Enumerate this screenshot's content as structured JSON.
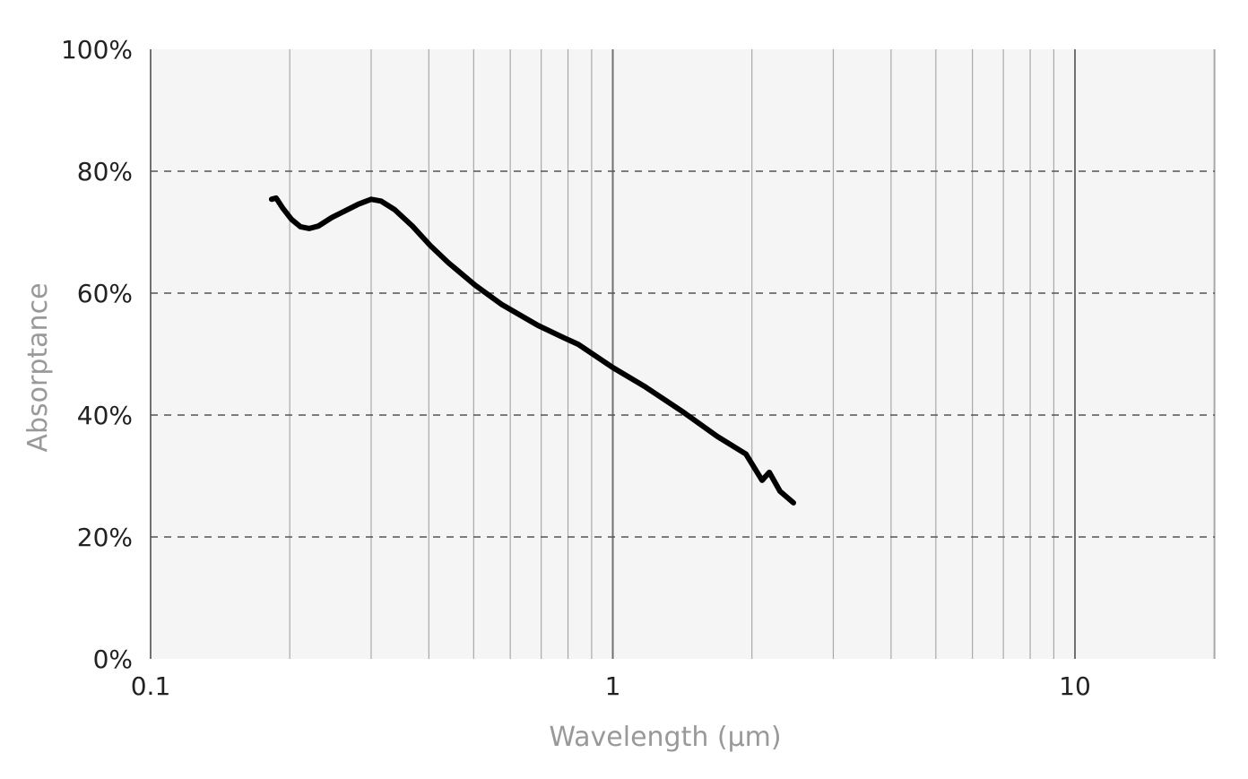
{
  "chart_data": {
    "type": "line",
    "title": "",
    "xlabel": "Wavelength (µm)",
    "ylabel": "Absorptance",
    "xscale": "log",
    "xlim": [
      0.1,
      20
    ],
    "ylim": [
      0,
      100
    ],
    "x_ticks": [
      {
        "value": 0.1,
        "label": "0.1"
      },
      {
        "value": 1,
        "label": "1"
      },
      {
        "value": 10,
        "label": "10"
      }
    ],
    "y_ticks": [
      {
        "value": 0,
        "label": "0%"
      },
      {
        "value": 20,
        "label": "20%"
      },
      {
        "value": 40,
        "label": "40%"
      },
      {
        "value": 60,
        "label": "60%"
      },
      {
        "value": 80,
        "label": "80%"
      },
      {
        "value": 100,
        "label": "100%"
      }
    ],
    "grid": {
      "x": "minor+major solid",
      "y": "dashed"
    },
    "colors": {
      "plot_background": "#f5f5f5",
      "line": "#000000",
      "minor_grid": "#a8a8a8",
      "major_grid": "#707070",
      "y_grid": "#555555",
      "axis_title": "#999999",
      "tick_label": "#222222"
    },
    "series": [
      {
        "x": [
          0.1827,
          0.1869,
          0.1929,
          0.2017,
          0.2109,
          0.2205,
          0.2306,
          0.2465,
          0.2636,
          0.2818,
          0.3001,
          0.3152,
          0.3372,
          0.3685,
          0.403,
          0.4406,
          0.5037,
          0.5759,
          0.6887,
          0.7875,
          0.842,
          1.0,
          1.177,
          1.407,
          1.683,
          1.941,
          2.104,
          2.181,
          2.3,
          2.46
        ],
        "y": [
          75.4,
          75.6,
          74.0,
          72.1,
          70.9,
          70.6,
          71.0,
          72.4,
          73.5,
          74.6,
          75.4,
          75.1,
          73.7,
          71.0,
          67.8,
          65.0,
          61.3,
          58.1,
          54.7,
          52.6,
          51.6,
          47.8,
          44.6,
          40.7,
          36.5,
          33.6,
          29.3,
          30.6,
          27.5,
          25.6
        ]
      }
    ]
  }
}
